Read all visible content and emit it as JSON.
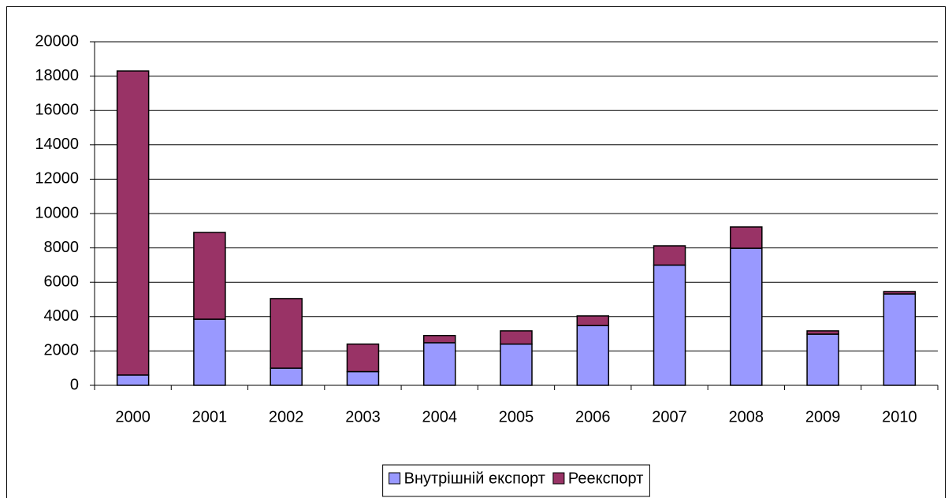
{
  "chart_data": {
    "type": "bar",
    "stacked": true,
    "categories": [
      "2000",
      "2001",
      "2002",
      "2003",
      "2004",
      "2005",
      "2006",
      "2007",
      "2008",
      "2009",
      "2010"
    ],
    "series": [
      {
        "name": "Внутрішній експорт",
        "color": "#9999ff",
        "values": [
          600,
          3850,
          1000,
          800,
          2480,
          2400,
          3480,
          7000,
          7980,
          2980,
          5320
        ]
      },
      {
        "name": "Реекспорт",
        "color": "#993366",
        "values": [
          17700,
          5050,
          4050,
          1600,
          420,
          770,
          560,
          1120,
          1240,
          190,
          140
        ]
      }
    ],
    "ylim": [
      0,
      20000
    ],
    "yticks": [
      0,
      2000,
      4000,
      6000,
      8000,
      10000,
      12000,
      14000,
      16000,
      18000,
      20000
    ],
    "grid": true,
    "legend": "bottom"
  }
}
